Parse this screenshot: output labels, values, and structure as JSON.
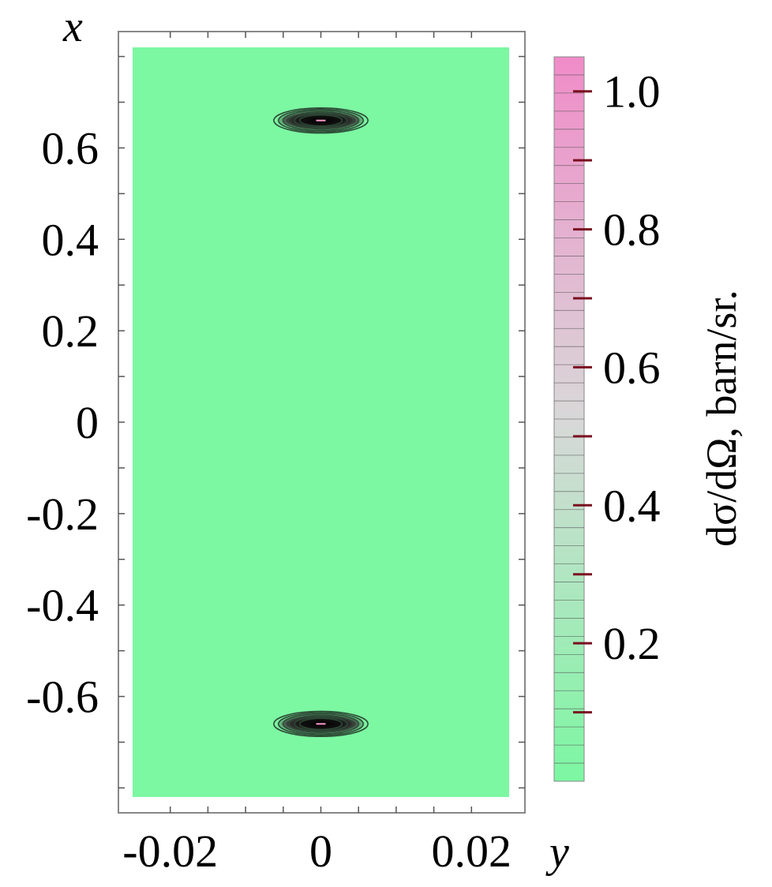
{
  "chart_data": {
    "type": "heatmap",
    "xlabel": "y",
    "ylabel": "x",
    "x_ticks": [
      "-0.02",
      "0",
      "0.02"
    ],
    "x_tick_values": [
      -0.02,
      0,
      0.02
    ],
    "y_ticks": [
      "0.6",
      "0.4",
      "0.2",
      "0",
      "-0.2",
      "-0.4",
      "-0.6"
    ],
    "y_tick_values": [
      0.6,
      0.4,
      0.2,
      0,
      -0.2,
      -0.4,
      -0.6
    ],
    "xlim": [
      -0.025,
      0.025
    ],
    "ylim": [
      -0.82,
      0.82
    ],
    "background_value": 0.0,
    "background_color": "#7cf7a2",
    "peaks": [
      {
        "y": 0.0,
        "x": 0.66,
        "value": 1.0,
        "contours_width_y": 0.0125,
        "contours_height_x": 0.055
      },
      {
        "y": 0.0,
        "x": -0.66,
        "value": 1.0,
        "contours_width_y": 0.0125,
        "contours_height_x": 0.055
      }
    ],
    "colorbar": {
      "label": "dσ/dΩ, barn/sr.",
      "tick_labels": [
        "1.0",
        "0.8",
        "0.6",
        "0.4",
        "0.2"
      ],
      "tick_values": [
        1.0,
        0.8,
        0.6,
        0.4,
        0.2
      ],
      "range": [
        0.0,
        1.05
      ],
      "color_low": "#7cf7a2",
      "color_mid": "#d8d8d8",
      "color_high": "#f08cc8",
      "levels": 40
    }
  }
}
